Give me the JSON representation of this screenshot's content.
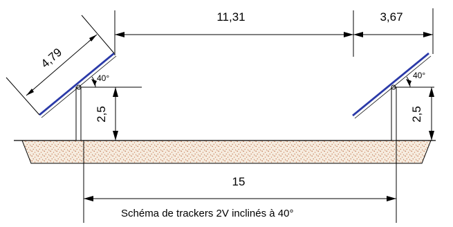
{
  "dimensions": {
    "panel_length": "4,79",
    "row_spacing": "11,31",
    "ground_footprint": "3,67",
    "left_axis_height": "2,5",
    "right_axis_height": "2,5",
    "pitch": "15"
  },
  "angles": {
    "left_tilt": "40°",
    "right_tilt": "40°"
  },
  "caption": "Schéma de trackers 2V inclinés à 40°",
  "colors": {
    "panel_blue": "#2b3aa8",
    "soil_dots": "#b8643a",
    "soil_fill": "#f6ecdf",
    "line": "#000000"
  }
}
